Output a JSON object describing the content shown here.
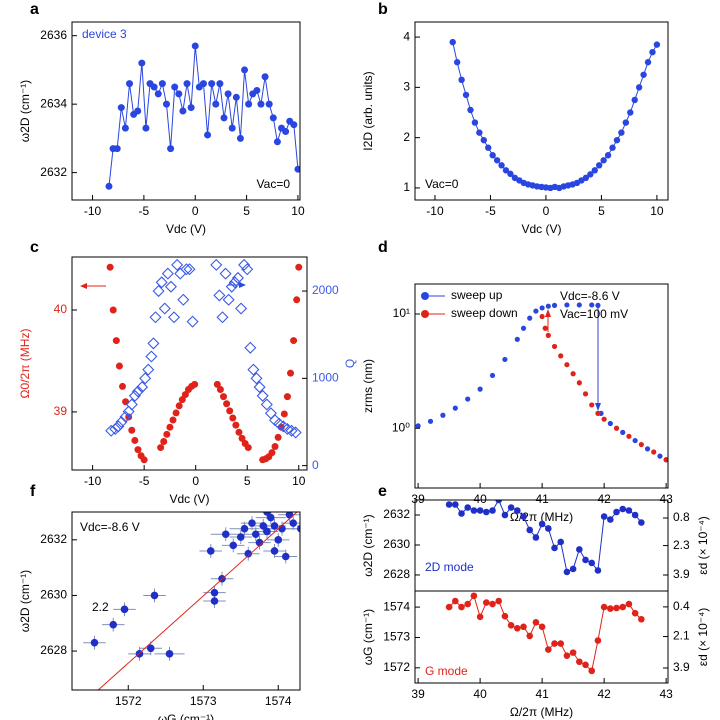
{
  "chart_data": [
    {
      "type": "line",
      "panel": "a",
      "xlabel": "Vdc (V)",
      "ylabel": "ω2D (cm⁻¹)",
      "xlim": [
        -12,
        10.2
      ],
      "xticks": [
        -10,
        -5,
        0,
        5,
        10
      ],
      "ylim": [
        2631.2,
        2636.4
      ],
      "yticks": [
        2632,
        2634,
        2636
      ],
      "annotations": [
        {
          "text": "device 3",
          "color": "#2a46e0"
        },
        {
          "text": "Vac=0",
          "color": "#000000"
        }
      ],
      "x": [
        -8.4,
        -8,
        -7.6,
        -7.2,
        -6.8,
        -6.4,
        -6,
        -5.6,
        -5.2,
        -4.8,
        -4.4,
        -4,
        -3.6,
        -3.2,
        -2.8,
        -2.4,
        -2,
        -1.6,
        -1.2,
        -0.8,
        -0.4,
        0,
        0.4,
        0.8,
        1.2,
        1.6,
        2,
        2.4,
        2.8,
        3.2,
        3.6,
        4,
        4.4,
        4.8,
        5.2,
        5.6,
        6,
        6.4,
        6.8,
        7.2,
        7.6,
        8,
        8.4,
        8.8,
        9.2,
        9.6,
        10
      ],
      "series": [
        {
          "color": "#2a46e0",
          "mode": "line+markers",
          "marker": "circle",
          "values": [
            2631.6,
            2632.7,
            2632.7,
            2633.9,
            2633.3,
            2634.6,
            2633.7,
            2633.8,
            2635.2,
            2633.3,
            2634.6,
            2634.5,
            2634.3,
            2634.6,
            2634.0,
            2632.7,
            2634.5,
            2634.3,
            2633.8,
            2634.6,
            2633.9,
            2635.7,
            2634.5,
            2634.6,
            2633.1,
            2634.6,
            2634.0,
            2634.6,
            2633.6,
            2634.3,
            2633.3,
            2634.2,
            2633.0,
            2635.0,
            2634.0,
            2634.3,
            2634.4,
            2634.0,
            2634.8,
            2634.0,
            2633.6,
            2632.9,
            2633.3,
            2633.2,
            2633.5,
            2633.4,
            2632.1
          ]
        }
      ]
    },
    {
      "type": "line",
      "panel": "b",
      "xlabel": "Vdc (V)",
      "ylabel": "I2D (arb. units)",
      "xlim": [
        -11.8,
        11
      ],
      "xticks": [
        -10,
        -5,
        0,
        5,
        10
      ],
      "ylim": [
        0.76,
        4.3
      ],
      "yticks": [
        1,
        2,
        3,
        4
      ],
      "annotations": [
        {
          "text": "Vac=0",
          "color": "#000000"
        }
      ],
      "x": [
        -8.4,
        -8,
        -7.6,
        -7.2,
        -6.8,
        -6.4,
        -6,
        -5.6,
        -5.2,
        -4.8,
        -4.4,
        -4,
        -3.6,
        -3.2,
        -2.8,
        -2.4,
        -2,
        -1.6,
        -1.2,
        -0.8,
        -0.4,
        0,
        0.4,
        0.8,
        1.2,
        1.6,
        2,
        2.4,
        2.8,
        3.2,
        3.6,
        4,
        4.4,
        4.8,
        5.2,
        5.6,
        6,
        6.4,
        6.8,
        7.2,
        7.6,
        8,
        8.4,
        8.8,
        9.2,
        9.6,
        10
      ],
      "series": [
        {
          "color": "#2a46e0",
          "mode": "line+markers",
          "marker": "circle",
          "values": [
            3.9,
            3.5,
            3.15,
            2.85,
            2.55,
            2.3,
            2.1,
            1.95,
            1.8,
            1.65,
            1.55,
            1.45,
            1.35,
            1.28,
            1.2,
            1.15,
            1.1,
            1.07,
            1.05,
            1.03,
            1.02,
            1.01,
            1.0,
            1.02,
            1.0,
            1.03,
            1.05,
            1.07,
            1.1,
            1.15,
            1.2,
            1.27,
            1.35,
            1.45,
            1.55,
            1.65,
            1.8,
            1.95,
            2.1,
            2.3,
            2.5,
            2.75,
            3.0,
            3.25,
            3.5,
            3.7,
            3.85
          ]
        }
      ]
    },
    {
      "type": "scatter",
      "panel": "c",
      "xlabel": "Vdc (V)",
      "ylabel": "Ω0/2π (MHz)",
      "y2label": "Q",
      "xlim": [
        -12,
        10.8
      ],
      "xticks": [
        -10,
        -5,
        0,
        5,
        10
      ],
      "ylim": [
        38.43,
        40.52
      ],
      "yticks": [
        39,
        40
      ],
      "y2lim": [
        -50,
        2390
      ],
      "y2ticks": [
        0,
        1000,
        2000
      ],
      "series": [
        {
          "color": "#e0231a",
          "mode": "markers",
          "marker": "circle",
          "x": [
            -8.3,
            -8.0,
            -7.7,
            -7.4,
            -7.1,
            -6.8,
            -6.5,
            -6.2,
            -5.9,
            -5.6,
            -5.3,
            -5.0,
            -3.4,
            -3.1,
            -2.8,
            -2.5,
            -2.2,
            -1.9,
            -1.6,
            -1.3,
            -1.0,
            -0.7,
            -0.4,
            -0.1,
            2.1,
            2.4,
            2.7,
            3.0,
            3.3,
            3.6,
            3.9,
            4.2,
            4.5,
            4.8,
            5.1,
            6.5,
            6.8,
            7.1,
            7.4,
            7.7,
            8.0,
            8.3,
            8.6,
            8.9,
            9.2,
            9.5,
            9.8,
            10.0
          ],
          "values": [
            40.42,
            40.0,
            39.7,
            39.45,
            39.25,
            39.1,
            38.95,
            38.82,
            38.72,
            38.63,
            38.57,
            38.53,
            38.65,
            38.71,
            38.78,
            38.85,
            38.92,
            38.99,
            39.06,
            39.12,
            39.17,
            39.22,
            39.25,
            39.27,
            39.27,
            39.22,
            39.15,
            39.08,
            39.01,
            38.94,
            38.87,
            38.8,
            38.74,
            38.69,
            38.65,
            38.53,
            38.54,
            38.56,
            38.6,
            38.66,
            38.75,
            38.85,
            38.98,
            39.15,
            39.38,
            39.7,
            40.1,
            40.42
          ]
        },
        {
          "color": "#3a5ae8",
          "mode": "markers",
          "marker": "diamond-open",
          "axis": "y2",
          "x": [
            -8.2,
            -7.8,
            -7.5,
            -7.2,
            -6.8,
            -6.5,
            -6.2,
            -5.9,
            -5.6,
            -5.2,
            -4.9,
            -4.6,
            -4.3,
            -4.1,
            -3.9,
            -3.6,
            -3.3,
            -3.0,
            -2.7,
            -2.4,
            -2.1,
            -1.8,
            -1.5,
            -1.2,
            -0.9,
            -0.6,
            -0.3,
            2.0,
            2.3,
            2.6,
            2.9,
            3.2,
            3.5,
            3.8,
            4.1,
            4.4,
            4.7,
            5.0,
            5.3,
            5.6,
            5.9,
            6.2,
            6.5,
            6.9,
            7.3,
            7.7,
            8.1,
            8.5,
            8.9,
            9.3,
            9.7
          ],
          "values": [
            400,
            420,
            450,
            500,
            560,
            620,
            700,
            800,
            850,
            900,
            1000,
            1100,
            1250,
            1400,
            1700,
            2000,
            2100,
            1800,
            2200,
            2050,
            1700,
            2300,
            2200,
            1900,
            2250,
            2250,
            1650,
            2300,
            1950,
            1700,
            2200,
            1900,
            2050,
            2100,
            2150,
            1800,
            2300,
            2250,
            1350,
            1100,
            1000,
            900,
            800,
            700,
            600,
            520,
            480,
            450,
            420,
            400,
            380
          ]
        }
      ]
    },
    {
      "type": "scatter",
      "panel": "d",
      "xlabel": "Ω/2π (MHz)",
      "ylabel": "zrms (nm)",
      "log_y": true,
      "xlim": [
        38.95,
        43.03
      ],
      "xticks": [
        39,
        40,
        41,
        42,
        43
      ],
      "ylim": [
        0.3,
        18.3
      ],
      "yticks": [
        {
          "value": 1,
          "label": "10⁰"
        },
        {
          "value": 10,
          "label": "10¹"
        }
      ],
      "legend": "top-left",
      "annotations": [
        {
          "text": "Vdc=-8.6 V",
          "color": "#000000"
        },
        {
          "text": "Vac=100 mV",
          "color": "#000000"
        }
      ],
      "series": [
        {
          "name": "sweep up",
          "color": "#2a46e0",
          "mode": "markers",
          "marker": "circle",
          "x": [
            39,
            39.2,
            39.4,
            39.6,
            39.8,
            40,
            40.2,
            40.4,
            40.6,
            40.7,
            40.8,
            40.9,
            41,
            41.1,
            41.2,
            41.4,
            41.6,
            41.8,
            41.9,
            41.95,
            42.1,
            42.3,
            42.5,
            42.7,
            42.9,
            43
          ],
          "values": [
            1.05,
            1.15,
            1.3,
            1.5,
            1.8,
            2.2,
            2.9,
            4.0,
            6.0,
            7.5,
            9.2,
            10.6,
            11.3,
            11.7,
            11.9,
            12.0,
            12.0,
            12.0,
            11.9,
            1.35,
            1.1,
            0.92,
            0.78,
            0.66,
            0.57,
            0.53
          ]
        },
        {
          "name": "sweep down",
          "color": "#e0231a",
          "mode": "markers",
          "marker": "circle",
          "x": [
            43,
            42.8,
            42.6,
            42.4,
            42.2,
            42.0,
            41.9,
            41.8,
            41.7,
            41.6,
            41.5,
            41.4,
            41.3,
            41.2,
            41.1,
            41.05,
            41.0
          ],
          "values": [
            0.53,
            0.62,
            0.72,
            0.85,
            1.0,
            1.2,
            1.35,
            1.6,
            2.0,
            2.5,
            3.0,
            3.6,
            4.3,
            5.2,
            6.5,
            7.5,
            9.5
          ]
        }
      ]
    },
    {
      "type": "scatter",
      "panel": "f",
      "xlabel": "ωG (cm⁻¹)",
      "ylabel": "ω2D (cm⁻¹)",
      "xlim": [
        1571.25,
        1574.29
      ],
      "xticks": [
        1572,
        1573,
        1574
      ],
      "ylim": [
        2626.6,
        2633.0
      ],
      "yticks": [
        2628,
        2630,
        2632
      ],
      "annotations": [
        {
          "text": "Vdc=-8.6 V",
          "color": "#000000"
        },
        {
          "text": "2.2",
          "color": "#000000"
        }
      ],
      "series": [
        {
          "color": "#1f2fc8",
          "mode": "markers",
          "marker": "circle",
          "x": [
            1571.55,
            1571.8,
            1571.95,
            1572.3,
            1572.15,
            1572.55,
            1572.35,
            1573.15,
            1573.15,
            1573.25,
            1573.1,
            1573.3,
            1573.4,
            1573.5,
            1573.55,
            1573.6,
            1573.65,
            1573.7,
            1573.75,
            1573.8,
            1573.85,
            1573.9,
            1573.95,
            1573.95,
            1574.0,
            1574.05,
            1574.1,
            1574.15,
            1574.2,
            1574.3,
            1573.85,
            1574.45
          ],
          "values": [
            2628.3,
            2628.95,
            2629.5,
            2628.1,
            2627.9,
            2627.9,
            2630.0,
            2629.8,
            2630.1,
            2630.6,
            2631.6,
            2632.2,
            2631.8,
            2632.1,
            2632.4,
            2631.5,
            2632.6,
            2632.2,
            2631.9,
            2632.5,
            2632.3,
            2632.8,
            2631.6,
            2632.5,
            2632.0,
            2632.4,
            2631.4,
            2632.9,
            2632.6,
            2632.4,
            2633.0,
            2632.5
          ],
          "xerr": [
            0.15,
            0.15,
            0.15,
            0.15,
            0.15,
            0.2,
            0.15,
            0.15,
            0.15,
            0.15,
            0.15,
            0.2,
            0.15,
            0.15,
            0.2,
            0.15,
            0.15,
            0.2,
            0.15,
            0.15,
            0.15,
            0.2,
            0.15,
            0.15,
            0.15,
            0.2,
            0.15,
            0.15,
            0.15,
            0.2,
            0.15,
            0.2
          ],
          "yerr": [
            0.25,
            0.25,
            0.25,
            0.25,
            0.25,
            0.25,
            0.25,
            0.25,
            0.25,
            0.25,
            0.25,
            0.25,
            0.25,
            0.25,
            0.25,
            0.25,
            0.25,
            0.25,
            0.25,
            0.25,
            0.25,
            0.25,
            0.25,
            0.25,
            0.25,
            0.25,
            0.25,
            0.25,
            0.25,
            0.25,
            0.25,
            0.25
          ]
        },
        {
          "color": "#e0231a",
          "mode": "line",
          "x": [
            1571.6,
            1574.25
          ],
          "values": [
            2626.6,
            2633.0
          ]
        }
      ]
    },
    {
      "type": "line",
      "panel": "e",
      "ylabel": "ω2D (cm⁻¹)",
      "y2label": "εd (× 10⁻⁴)",
      "xlim": [
        38.95,
        43.03
      ],
      "ylim": [
        2626.93,
        2633.0
      ],
      "yticks": [
        2628,
        2630,
        2632
      ],
      "y2lim": [
        4.77,
        -0.18
      ],
      "y2ticks": [
        0.8,
        2.3,
        3.9
      ],
      "annotations": [
        {
          "text": "2D mode",
          "color": "#1f2fc8"
        }
      ],
      "x": [
        39.5,
        39.6,
        39.7,
        39.8,
        39.9,
        40.0,
        40.1,
        40.2,
        40.3,
        40.4,
        40.5,
        40.6,
        40.7,
        40.8,
        40.9,
        41.0,
        41.1,
        41.2,
        41.3,
        41.4,
        41.5,
        41.6,
        41.7,
        41.8,
        41.9,
        42.0,
        42.1,
        42.2,
        42.3,
        42.4,
        42.5,
        42.6
      ],
      "series": [
        {
          "color": "#1f2fc8",
          "mode": "line+markers",
          "marker": "circle",
          "values": [
            2632.7,
            2632.7,
            2632.1,
            2632.5,
            2632.3,
            2632.3,
            2632.2,
            2632.3,
            2633.0,
            2632.0,
            2632.5,
            2632.3,
            2631.9,
            2631.0,
            2630.5,
            2631.4,
            2631.1,
            2629.8,
            2630.2,
            2628.2,
            2628.4,
            2629.7,
            2629.0,
            2628.8,
            2628.3,
            2631.9,
            2631.7,
            2632.2,
            2632.4,
            2632.3,
            2632.0,
            2631.5
          ]
        }
      ]
    },
    {
      "type": "line",
      "xlabel": "Ω/2π (MHz)",
      "ylabel": "ωG (cm⁻¹)",
      "y2label": "εd (× 10⁻⁴)",
      "xlim": [
        38.95,
        43.03
      ],
      "xticks": [
        39,
        40,
        41,
        42,
        43
      ],
      "ylim": [
        1571.5,
        1574.53
      ],
      "yticks": [
        1572,
        1573,
        1574
      ],
      "y2lim": [
        4.76,
        -0.51
      ],
      "y2ticks": [
        0.4,
        2.1,
        3.9
      ],
      "annotations": [
        {
          "text": "G mode",
          "color": "#e0231a"
        }
      ],
      "x": [
        39.5,
        39.6,
        39.7,
        39.8,
        39.9,
        40.0,
        40.1,
        40.2,
        40.3,
        40.4,
        40.5,
        40.6,
        40.7,
        40.8,
        40.9,
        41.0,
        41.1,
        41.2,
        41.3,
        41.4,
        41.5,
        41.6,
        41.7,
        41.8,
        41.9,
        42.0,
        42.1,
        42.2,
        42.3,
        42.4,
        42.5,
        42.6
      ],
      "series": [
        {
          "color": "#e0231a",
          "mode": "line+markers",
          "marker": "circle",
          "values": [
            1574.0,
            1574.2,
            1574.0,
            1574.1,
            1574.37,
            1573.68,
            1574.15,
            1574.1,
            1574.2,
            1573.7,
            1573.4,
            1573.3,
            1573.35,
            1573.05,
            1573.5,
            1573.35,
            1572.6,
            1572.8,
            1572.8,
            1572.4,
            1572.5,
            1572.2,
            1572.1,
            1571.9,
            1572.9,
            1574.0,
            1573.95,
            1573.97,
            1574.0,
            1574.1,
            1573.8,
            1573.6
          ]
        }
      ]
    }
  ]
}
